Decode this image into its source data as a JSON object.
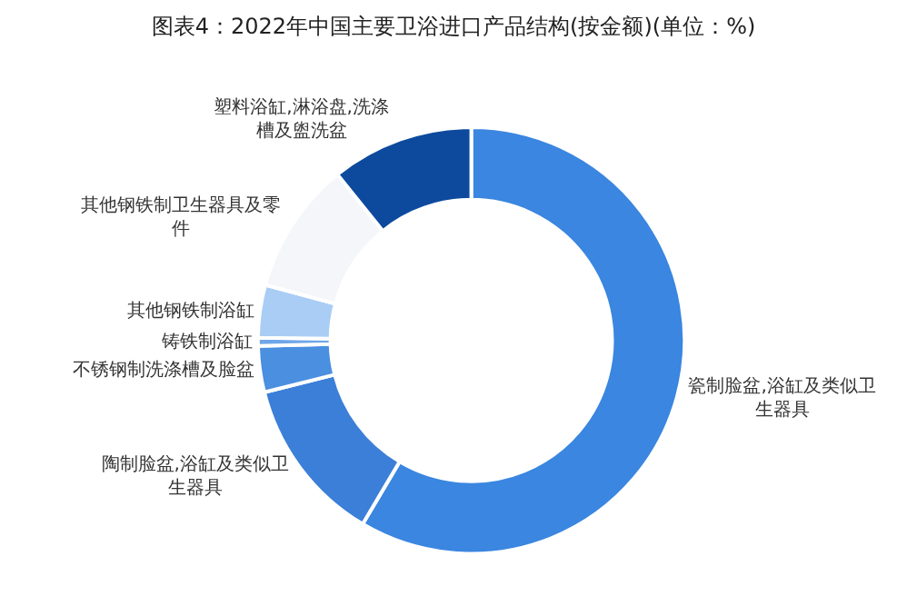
{
  "chart_data": {
    "type": "donut",
    "title": "图表4：2022年中国主要卫浴进口产品结构(按金额)(单位：%)",
    "categories": [
      "瓷制脸盆,浴缸及类似卫生器具",
      "陶制脸盆,浴缸及类似卫生器具",
      "不锈钢制洗涤槽及脸盆",
      "铸铁制浴缸",
      "其他钢铁制浴缸",
      "其他钢铁制卫生器具及零件",
      "塑料浴缸,淋浴盘,洗涤槽及盥洗盆"
    ],
    "values": [
      58.5,
      12.6,
      3.5,
      0.6,
      4.0,
      10.0,
      10.8
    ],
    "colors": [
      "#3a86e0",
      "#3b7fd8",
      "#4a8fe0",
      "#6fa6e8",
      "#a9cdf5",
      "#f4f6f9",
      "#0d4a9e"
    ],
    "legend": false
  }
}
